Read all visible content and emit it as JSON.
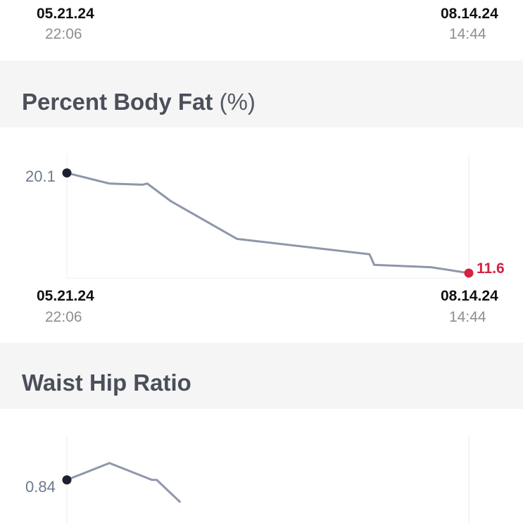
{
  "top_card": {
    "start_date": "05.21.24",
    "start_time": "22:06",
    "end_date": "08.14.24",
    "end_time": "14:44"
  },
  "body_fat": {
    "title": "Percent Body Fat",
    "unit": "(%)",
    "start_label": "20.1",
    "end_label": "11.6",
    "start_date": "05.21.24",
    "start_time": "22:06",
    "end_date": "08.14.24",
    "end_time": "14:44"
  },
  "waist_hip": {
    "title": "Waist Hip Ratio",
    "start_label": "0.84"
  },
  "colors": {
    "line": "#8e96aa",
    "start_dot": "#1c2030",
    "end_dot": "#d6213f",
    "end_label": "#d6213f"
  },
  "chart_data": [
    {
      "type": "line",
      "title": "Percent Body Fat (%)",
      "x": [
        "05.21.24",
        "05.30.24",
        "06.06.24",
        "06.07.24",
        "06.12.24",
        "06.26.24",
        "07.24.24",
        "07.25.24",
        "08.06.24",
        "08.14.24"
      ],
      "values": [
        20.1,
        19.2,
        19.1,
        19.2,
        17.7,
        14.5,
        13.2,
        12.3,
        12.1,
        11.6
      ],
      "ylim": [
        11.0,
        20.5
      ],
      "grid": false
    },
    {
      "type": "line",
      "title": "Waist Hip Ratio",
      "x": [
        "05.21.24",
        "05.30.24",
        "06.08.24",
        "06.09.24",
        "06.14.24"
      ],
      "values": [
        0.84,
        0.855,
        0.84,
        0.84,
        0.82
      ],
      "ylim": [
        0.75,
        0.87
      ],
      "grid": false
    }
  ]
}
